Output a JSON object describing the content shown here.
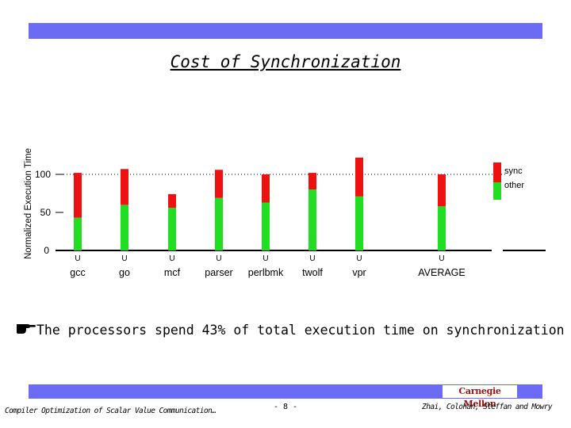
{
  "slide": {
    "title": "Cost of Synchronization",
    "finding": "The processors spend 43% of total execution time on synchronization",
    "brand": "Carnegie Mellon",
    "footer_left": "Compiler Optimization of Scalar Value Communication…",
    "footer_center": "- 8 -",
    "footer_right": "Zhai, Colohan, Steffan and Mowry",
    "bullet_icon": "pointing-hand-icon",
    "accent_color": "#6b6bf5"
  },
  "chart_data": {
    "type": "bar",
    "stacked": true,
    "ylabel": "Normalized Execution Time",
    "xlabel": "",
    "ylim": [
      0,
      125
    ],
    "yticks": [
      0,
      50,
      100
    ],
    "gridline_at": 100,
    "legend_position": "right",
    "categories": [
      "gcc",
      "go",
      "mcf",
      "parser",
      "perlbmk",
      "twolf",
      "vpr",
      "AVERAGE"
    ],
    "bar_marker": "U",
    "series": [
      {
        "name": "other",
        "color": "#22dd22",
        "values": [
          43,
          60,
          56,
          69,
          63,
          80,
          71,
          58
        ]
      },
      {
        "name": "sync",
        "color": "#ee1111",
        "values": [
          59,
          47,
          18,
          37,
          37,
          22,
          51,
          42
        ]
      }
    ]
  }
}
